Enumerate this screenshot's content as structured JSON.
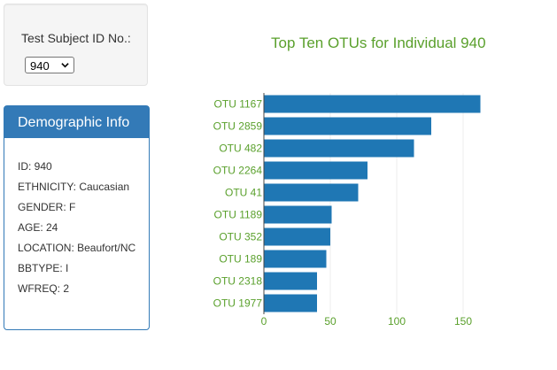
{
  "selector": {
    "label": "Test Subject ID No.:",
    "selected": "940"
  },
  "demographics": {
    "title": "Demographic Info",
    "lines": [
      "ID: 940",
      "ETHNICITY: Caucasian",
      "GENDER: F",
      "AGE: 24",
      "LOCATION: Beaufort/NC",
      "BBTYPE: I",
      "WFREQ: 2"
    ]
  },
  "colors": {
    "bar": "#1f77b4",
    "text_green": "#5aa02c",
    "panel_blue": "#337ab7"
  },
  "chart_data": {
    "type": "bar",
    "orientation": "horizontal",
    "title": "Top Ten OTUs for Individual 940",
    "categories": [
      "OTU 1167",
      "OTU 2859",
      "OTU 482",
      "OTU 2264",
      "OTU 41",
      "OTU 1189",
      "OTU 352",
      "OTU 189",
      "OTU 2318",
      "OTU 1977"
    ],
    "values": [
      163,
      126,
      113,
      78,
      71,
      51,
      50,
      47,
      40,
      40
    ],
    "xticks": [
      0,
      50,
      100,
      150
    ],
    "xlim": [
      0,
      170
    ],
    "grid": true
  }
}
